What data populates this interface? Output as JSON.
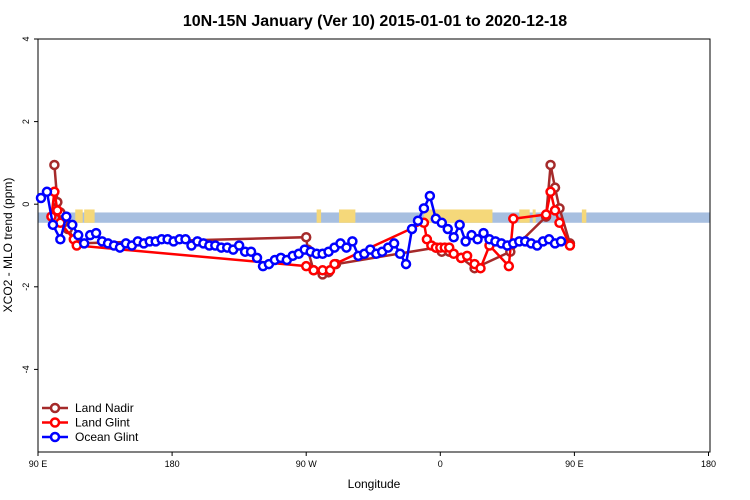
{
  "chart_data": {
    "type": "line",
    "title": "10N-15N January (Ver 10)   2015-01-01 to 2020-12-18",
    "xlabel": "Longitude",
    "ylabel": "XCO2 - MLO trend (ppm)",
    "xlim": [
      90,
      450
    ],
    "ylim": [
      -6,
      4
    ],
    "x_ticks": [
      {
        "value": 90,
        "label": "90 E"
      },
      {
        "value": 180,
        "label": "180"
      },
      {
        "value": 270,
        "label": "90 W"
      },
      {
        "value": 360,
        "label": "0"
      },
      {
        "value": 450,
        "label": "90 E"
      },
      {
        "value": 540,
        "label": "180"
      }
    ],
    "y_ticks": [
      {
        "value": -4,
        "label": "-4"
      },
      {
        "value": -2,
        "label": "-2"
      },
      {
        "value": 0,
        "label": "0"
      },
      {
        "value": 2,
        "label": "2"
      },
      {
        "value": 4,
        "label": "4"
      }
    ],
    "legend_position": "bottom-left",
    "grid": false,
    "land_band": {
      "y_top": -0.2,
      "y_bottom": -0.45,
      "water_color": "#a7bfe0",
      "land_color": "#f5d87a"
    },
    "land_segments": [
      [
        115,
        120
      ],
      [
        121,
        128
      ],
      [
        277,
        280
      ],
      [
        292,
        303
      ],
      [
        349,
        395
      ],
      [
        413,
        420
      ],
      [
        422,
        424
      ],
      [
        455,
        458
      ]
    ],
    "series": [
      {
        "name": "Land Nadir",
        "color": "#a52a2a",
        "points": [
          [
            101,
            0.95
          ],
          [
            103,
            0.05
          ],
          [
            105,
            -0.2
          ],
          [
            107,
            -0.45
          ],
          [
            110,
            -0.6
          ],
          [
            116,
            -0.95
          ],
          [
            270,
            -0.8
          ],
          [
            271,
            -1.1
          ],
          [
            275,
            -1.6
          ],
          [
            281,
            -1.7
          ],
          [
            285,
            -1.65
          ],
          [
            290,
            -1.45
          ],
          [
            357,
            -1.05
          ],
          [
            361,
            -1.15
          ],
          [
            366,
            -1.15
          ],
          [
            374,
            -1.3
          ],
          [
            383,
            -1.55
          ],
          [
            407,
            -1.15
          ],
          [
            431,
            -0.3
          ],
          [
            434,
            0.95
          ],
          [
            437,
            0.4
          ],
          [
            440,
            -0.1
          ],
          [
            447,
            -0.95
          ]
        ]
      },
      {
        "name": "Land Glint",
        "color": "#ff0000",
        "points": [
          [
            99,
            -0.3
          ],
          [
            101,
            0.3
          ],
          [
            103,
            -0.15
          ],
          [
            105,
            -0.45
          ],
          [
            114,
            -0.85
          ],
          [
            116,
            -1.0
          ],
          [
            270,
            -1.5
          ],
          [
            275,
            -1.6
          ],
          [
            281,
            -1.6
          ],
          [
            286,
            -1.6
          ],
          [
            289,
            -1.45
          ],
          [
            349,
            -0.45
          ],
          [
            351,
            -0.85
          ],
          [
            354,
            -1.0
          ],
          [
            357,
            -1.05
          ],
          [
            360,
            -1.05
          ],
          [
            363,
            -1.05
          ],
          [
            366,
            -1.05
          ],
          [
            369,
            -1.2
          ],
          [
            374,
            -1.3
          ],
          [
            378,
            -1.25
          ],
          [
            383,
            -1.45
          ],
          [
            387,
            -1.55
          ],
          [
            393,
            -1.0
          ],
          [
            406,
            -1.5
          ],
          [
            409,
            -0.35
          ],
          [
            431,
            -0.25
          ],
          [
            434,
            0.3
          ],
          [
            437,
            -0.15
          ],
          [
            440,
            -0.45
          ],
          [
            447,
            -1.0
          ]
        ]
      },
      {
        "name": "Ocean Glint",
        "color": "#0000ff",
        "points": [
          [
            92,
            0.15
          ],
          [
            96,
            0.3
          ],
          [
            100,
            -0.5
          ],
          [
            105,
            -0.85
          ],
          [
            109,
            -0.3
          ],
          [
            113,
            -0.5
          ],
          [
            117,
            -0.75
          ],
          [
            121,
            -0.95
          ],
          [
            125,
            -0.75
          ],
          [
            129,
            -0.7
          ],
          [
            133,
            -0.9
          ],
          [
            137,
            -0.95
          ],
          [
            141,
            -1.0
          ],
          [
            145,
            -1.05
          ],
          [
            149,
            -0.95
          ],
          [
            153,
            -1.0
          ],
          [
            157,
            -0.9
          ],
          [
            161,
            -0.95
          ],
          [
            165,
            -0.9
          ],
          [
            169,
            -0.9
          ],
          [
            173,
            -0.85
          ],
          [
            177,
            -0.85
          ],
          [
            181,
            -0.9
          ],
          [
            185,
            -0.85
          ],
          [
            189,
            -0.85
          ],
          [
            193,
            -1.0
          ],
          [
            197,
            -0.9
          ],
          [
            201,
            -0.95
          ],
          [
            205,
            -1.0
          ],
          [
            209,
            -1.0
          ],
          [
            213,
            -1.05
          ],
          [
            217,
            -1.05
          ],
          [
            221,
            -1.1
          ],
          [
            225,
            -1.0
          ],
          [
            229,
            -1.15
          ],
          [
            233,
            -1.15
          ],
          [
            237,
            -1.3
          ],
          [
            241,
            -1.5
          ],
          [
            245,
            -1.45
          ],
          [
            249,
            -1.35
          ],
          [
            253,
            -1.3
          ],
          [
            257,
            -1.35
          ],
          [
            261,
            -1.25
          ],
          [
            265,
            -1.2
          ],
          [
            269,
            -1.1
          ],
          [
            273,
            -1.15
          ],
          [
            277,
            -1.2
          ],
          [
            281,
            -1.2
          ],
          [
            285,
            -1.15
          ],
          [
            289,
            -1.05
          ],
          [
            293,
            -0.95
          ],
          [
            297,
            -1.05
          ],
          [
            301,
            -0.9
          ],
          [
            305,
            -1.25
          ],
          [
            309,
            -1.2
          ],
          [
            313,
            -1.1
          ],
          [
            317,
            -1.2
          ],
          [
            321,
            -1.15
          ],
          [
            325,
            -1.05
          ],
          [
            329,
            -0.95
          ],
          [
            333,
            -1.2
          ],
          [
            337,
            -1.45
          ],
          [
            341,
            -0.6
          ],
          [
            345,
            -0.4
          ],
          [
            349,
            -0.1
          ],
          [
            353,
            0.2
          ],
          [
            357,
            -0.35
          ],
          [
            361,
            -0.45
          ],
          [
            365,
            -0.6
          ],
          [
            369,
            -0.8
          ],
          [
            373,
            -0.5
          ],
          [
            377,
            -0.9
          ],
          [
            381,
            -0.75
          ],
          [
            385,
            -0.85
          ],
          [
            389,
            -0.7
          ],
          [
            393,
            -0.85
          ],
          [
            397,
            -0.9
          ],
          [
            401,
            -0.95
          ],
          [
            405,
            -1.0
          ],
          [
            409,
            -0.95
          ],
          [
            413,
            -0.9
          ],
          [
            417,
            -0.9
          ],
          [
            421,
            -0.95
          ],
          [
            425,
            -1.0
          ],
          [
            429,
            -0.9
          ],
          [
            433,
            -0.85
          ],
          [
            437,
            -0.95
          ],
          [
            441,
            -0.9
          ]
        ]
      }
    ]
  }
}
